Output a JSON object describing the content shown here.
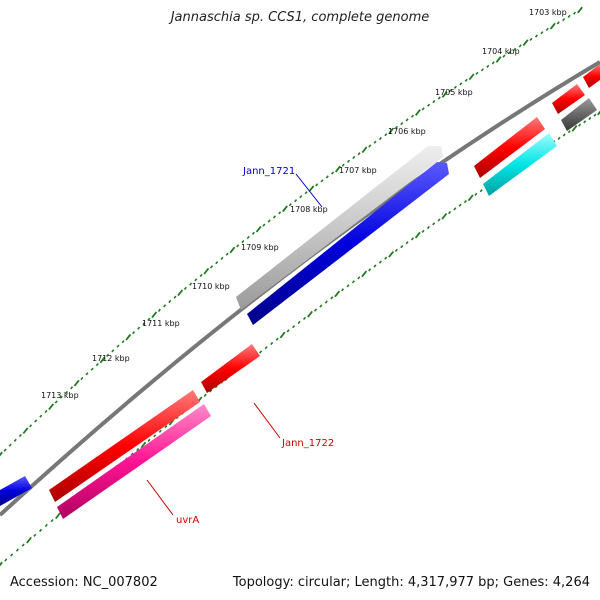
{
  "title": "Jannaschia sp. CCS1, complete genome",
  "footer": {
    "accession": "Accession: NC_007802",
    "summary": "Topology: circular; Length: 4,317,977 bp; Genes: 4,264"
  },
  "scale_labels": [
    "1703 kbp",
    "1704 kbp",
    "1705 kbp",
    "1706 kbp",
    "1707 kbp",
    "1708 kbp",
    "1709 kbp",
    "1710 kbp",
    "1711 kbp",
    "1712 kbp",
    "1713 kbp"
  ],
  "gene_labels": {
    "jann_1721": "Jann_1721",
    "jann_1722": "Jann_1722",
    "uvra": "uvrA"
  },
  "colors": {
    "backbone": "#777777",
    "tick": "#1f7a1f",
    "gene_red": "#ff0000",
    "gene_blue": "#0000dd",
    "gene_gray": "#c8c8c8",
    "gene_darkgray": "#666666",
    "gene_cyan": "#00e5e5",
    "gene_magenta": "#ff1493",
    "label_blue": "#0000cc",
    "label_red": "#cc0000"
  }
}
